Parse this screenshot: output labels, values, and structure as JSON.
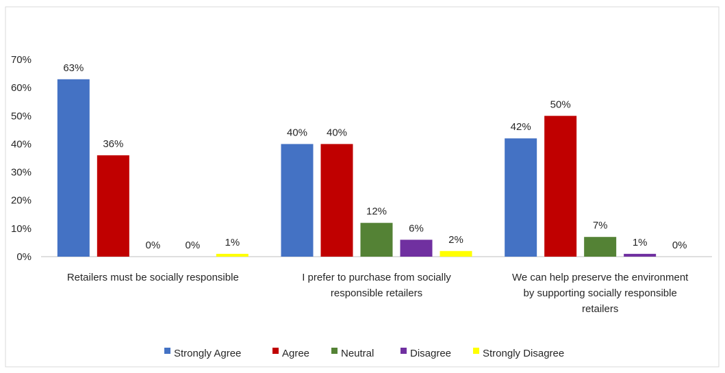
{
  "chart_data": {
    "type": "bar",
    "title": "",
    "xlabel": "",
    "ylabel": "",
    "ylim": [
      0,
      70
    ],
    "yticks": [
      0,
      10,
      20,
      30,
      40,
      50,
      60,
      70
    ],
    "ytick_labels": [
      "0%",
      "10%",
      "20%",
      "30%",
      "40%",
      "50%",
      "60%",
      "70%"
    ],
    "grid": false,
    "legend_position": "bottom",
    "categories": [
      [
        "Retailers must be socially responsible"
      ],
      [
        "I prefer to purchase from socially",
        "responsible retailers"
      ],
      [
        "We can help preserve the environment",
        "by supporting socially responsible",
        "retailers"
      ]
    ],
    "series": [
      {
        "name": "Strongly Agree",
        "color": "#4472C4",
        "values": [
          63,
          40,
          42
        ],
        "labels": [
          "63%",
          "40%",
          "42%"
        ]
      },
      {
        "name": "Agree",
        "color": "#C00000",
        "values": [
          36,
          40,
          50
        ],
        "labels": [
          "36%",
          "40%",
          "50%"
        ]
      },
      {
        "name": "Neutral",
        "color": "#548235",
        "values": [
          0,
          12,
          7
        ],
        "labels": [
          "0%",
          "12%",
          "7%"
        ]
      },
      {
        "name": "Disagree",
        "color": "#7030A0",
        "values": [
          0,
          6,
          1
        ],
        "labels": [
          "0%",
          "6%",
          "1%"
        ]
      },
      {
        "name": "Strongly Disagree",
        "color": "#FFFF00",
        "values": [
          1,
          2,
          0
        ],
        "labels": [
          "1%",
          "2%",
          "0%"
        ]
      }
    ]
  }
}
